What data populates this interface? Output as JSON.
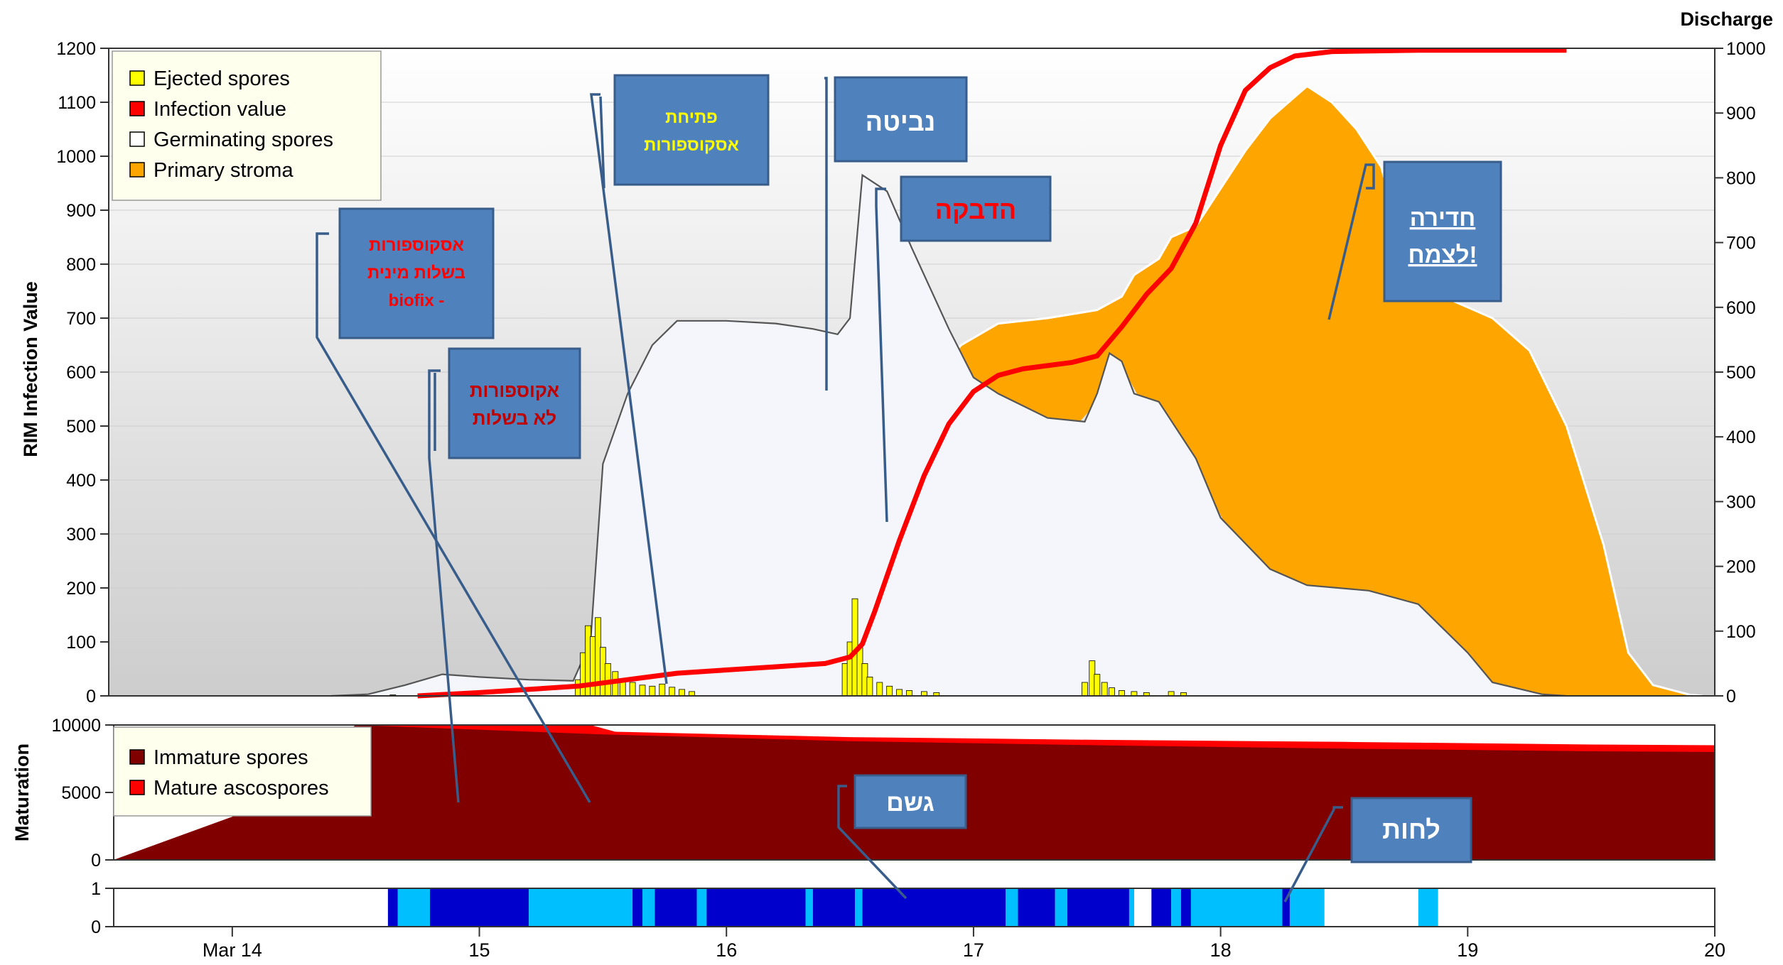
{
  "colors": {
    "ejected": "#ffff00",
    "infection": "#ff0000",
    "germinating": "#f4f6fb",
    "stroma": "#ffa500",
    "immature": "#800000",
    "mature": "#ff0000",
    "rain": "#0000cc",
    "wet": "#00bfff",
    "callout": "#4f81bd",
    "callout_border": "#385d8a"
  },
  "chart_data": [
    {
      "type": "area",
      "name": "rim-infection-panel",
      "ylabel": "RIM Infection Value",
      "y2label": "Discharge",
      "ylim": [
        0,
        1200
      ],
      "y2lim": [
        0,
        1000
      ],
      "yticks": [
        "0",
        "100",
        "200",
        "300",
        "400",
        "500",
        "600",
        "700",
        "800",
        "900",
        "1000",
        "1100",
        "1200"
      ],
      "y2ticks": [
        "0",
        "100",
        "200",
        "300",
        "400",
        "500",
        "600",
        "700",
        "800",
        "900",
        "1000"
      ],
      "legend": {
        "position": "top-left",
        "entries": [
          "Ejected spores",
          "Infection value",
          "Germinating spores",
          "Primary stroma"
        ]
      },
      "germinating": [
        [
          14.4,
          0
        ],
        [
          14.55,
          3
        ],
        [
          14.7,
          20
        ],
        [
          14.85,
          40
        ],
        [
          15.0,
          35
        ],
        [
          15.2,
          30
        ],
        [
          15.38,
          28
        ],
        [
          15.45,
          100
        ],
        [
          15.5,
          430
        ],
        [
          15.6,
          560
        ],
        [
          15.7,
          650
        ],
        [
          15.8,
          695
        ],
        [
          16.0,
          695
        ],
        [
          16.2,
          690
        ],
        [
          16.35,
          680
        ],
        [
          16.45,
          670
        ],
        [
          16.5,
          700
        ],
        [
          16.55,
          965
        ],
        [
          16.65,
          935
        ],
        [
          16.75,
          830
        ],
        [
          16.9,
          680
        ],
        [
          17.0,
          590
        ],
        [
          17.1,
          560
        ],
        [
          17.3,
          515
        ],
        [
          17.45,
          508
        ],
        [
          17.5,
          560
        ],
        [
          17.55,
          635
        ],
        [
          17.6,
          620
        ],
        [
          17.65,
          560
        ],
        [
          17.75,
          545
        ],
        [
          17.9,
          440
        ],
        [
          18.0,
          330
        ],
        [
          18.2,
          235
        ],
        [
          18.35,
          205
        ],
        [
          18.6,
          195
        ],
        [
          18.8,
          170
        ],
        [
          19.0,
          80
        ],
        [
          19.1,
          25
        ],
        [
          19.3,
          3
        ],
        [
          19.4,
          0
        ]
      ],
      "stroma_top": [
        [
          16.85,
          600
        ],
        [
          16.95,
          650
        ],
        [
          17.1,
          690
        ],
        [
          17.3,
          700
        ],
        [
          17.5,
          715
        ],
        [
          17.6,
          740
        ],
        [
          17.65,
          780
        ],
        [
          17.75,
          810
        ],
        [
          17.8,
          850
        ],
        [
          17.9,
          870
        ],
        [
          18.0,
          940
        ],
        [
          18.1,
          1010
        ],
        [
          18.2,
          1070
        ],
        [
          18.3,
          1110
        ],
        [
          18.35,
          1130
        ],
        [
          18.45,
          1100
        ],
        [
          18.55,
          1050
        ],
        [
          18.65,
          980
        ],
        [
          18.7,
          900
        ],
        [
          18.8,
          780
        ],
        [
          18.9,
          740
        ],
        [
          19.0,
          720
        ],
        [
          19.1,
          700
        ],
        [
          19.25,
          640
        ],
        [
          19.4,
          500
        ],
        [
          19.55,
          280
        ],
        [
          19.65,
          80
        ],
        [
          19.75,
          20
        ],
        [
          19.9,
          2
        ],
        [
          19.95,
          0
        ]
      ],
      "infection_value": [
        [
          14.75,
          0
        ],
        [
          15.0,
          5
        ],
        [
          15.4,
          15
        ],
        [
          15.6,
          25
        ],
        [
          15.8,
          35
        ],
        [
          16.0,
          40
        ],
        [
          16.2,
          45
        ],
        [
          16.4,
          50
        ],
        [
          16.5,
          60
        ],
        [
          16.55,
          80
        ],
        [
          16.6,
          130
        ],
        [
          16.7,
          240
        ],
        [
          16.8,
          340
        ],
        [
          16.9,
          420
        ],
        [
          17.0,
          470
        ],
        [
          17.1,
          495
        ],
        [
          17.2,
          505
        ],
        [
          17.4,
          515
        ],
        [
          17.5,
          525
        ],
        [
          17.6,
          570
        ],
        [
          17.7,
          620
        ],
        [
          17.8,
          660
        ],
        [
          17.9,
          730
        ],
        [
          18.0,
          850
        ],
        [
          18.1,
          935
        ],
        [
          18.2,
          970
        ],
        [
          18.3,
          988
        ],
        [
          18.45,
          995
        ],
        [
          18.8,
          997
        ],
        [
          19.4,
          997
        ]
      ],
      "ejected_spores": [
        [
          14.65,
          2
        ],
        [
          14.9,
          4
        ],
        [
          15.4,
          30
        ],
        [
          15.42,
          80
        ],
        [
          15.44,
          130
        ],
        [
          15.46,
          110
        ],
        [
          15.48,
          145
        ],
        [
          15.5,
          90
        ],
        [
          15.52,
          60
        ],
        [
          15.55,
          45
        ],
        [
          15.58,
          30
        ],
        [
          15.62,
          25
        ],
        [
          15.66,
          20
        ],
        [
          15.7,
          18
        ],
        [
          15.74,
          22
        ],
        [
          15.78,
          16
        ],
        [
          15.82,
          12
        ],
        [
          15.86,
          8
        ],
        [
          16.48,
          60
        ],
        [
          16.5,
          100
        ],
        [
          16.52,
          180
        ],
        [
          16.54,
          90
        ],
        [
          16.56,
          60
        ],
        [
          16.58,
          35
        ],
        [
          16.62,
          25
        ],
        [
          16.66,
          18
        ],
        [
          16.7,
          12
        ],
        [
          16.74,
          10
        ],
        [
          16.8,
          8
        ],
        [
          16.85,
          6
        ],
        [
          17.45,
          25
        ],
        [
          17.48,
          65
        ],
        [
          17.5,
          40
        ],
        [
          17.53,
          25
        ],
        [
          17.56,
          15
        ],
        [
          17.6,
          10
        ],
        [
          17.65,
          8
        ],
        [
          17.7,
          6
        ],
        [
          17.8,
          8
        ],
        [
          17.85,
          6
        ]
      ]
    },
    {
      "type": "area",
      "name": "maturation-panel",
      "ylabel": "Maturation",
      "ylim": [
        0,
        10000
      ],
      "yticks": [
        "0",
        "5000",
        "10000"
      ],
      "legend": {
        "position": "top-left",
        "entries": [
          "Immature spores",
          "Mature ascospores"
        ]
      },
      "immature": [
        [
          14.0,
          3200
        ],
        [
          14.5,
          10000
        ],
        [
          15.5,
          9300
        ],
        [
          16.5,
          8800
        ],
        [
          17.5,
          8500
        ],
        [
          18.5,
          8250
        ],
        [
          19.5,
          8050
        ],
        [
          20.0,
          8000
        ]
      ],
      "total": [
        [
          14.0,
          3200
        ],
        [
          14.5,
          10000
        ],
        [
          15.45,
          10000
        ],
        [
          15.55,
          9500
        ],
        [
          16.5,
          9100
        ],
        [
          17.5,
          8900
        ],
        [
          18.5,
          8750
        ],
        [
          19.5,
          8550
        ],
        [
          20.0,
          8500
        ]
      ]
    },
    {
      "type": "heatmap",
      "name": "wetness-panel",
      "ylim": [
        0,
        1
      ],
      "yticks": [
        "0",
        "1"
      ],
      "segments": [
        [
          14.63,
          14.67,
          "rain"
        ],
        [
          14.67,
          14.8,
          "wet"
        ],
        [
          14.8,
          15.2,
          "rain"
        ],
        [
          15.2,
          15.62,
          "wet"
        ],
        [
          15.62,
          15.66,
          "rain"
        ],
        [
          15.66,
          15.71,
          "wet"
        ],
        [
          15.71,
          15.88,
          "rain"
        ],
        [
          15.88,
          15.92,
          "wet"
        ],
        [
          15.92,
          16.32,
          "rain"
        ],
        [
          16.32,
          16.35,
          "wet"
        ],
        [
          16.35,
          16.52,
          "rain"
        ],
        [
          16.52,
          16.55,
          "wet"
        ],
        [
          16.55,
          17.13,
          "rain"
        ],
        [
          17.13,
          17.18,
          "wet"
        ],
        [
          17.18,
          17.33,
          "rain"
        ],
        [
          17.33,
          17.38,
          "wet"
        ],
        [
          17.38,
          17.63,
          "rain"
        ],
        [
          17.63,
          17.65,
          "wet"
        ],
        [
          17.72,
          17.8,
          "rain"
        ],
        [
          17.8,
          17.84,
          "wet"
        ],
        [
          17.84,
          17.88,
          "rain"
        ],
        [
          17.88,
          18.25,
          "wet"
        ],
        [
          18.25,
          18.28,
          "rain"
        ],
        [
          18.28,
          18.42,
          "wet"
        ],
        [
          18.8,
          18.88,
          "wet"
        ]
      ]
    }
  ],
  "xaxis": {
    "range": [
      13.5,
      20.0
    ],
    "ticks": [
      {
        "value": 14,
        "label": "Mar 14"
      },
      {
        "value": 15,
        "label": "15"
      },
      {
        "value": 16,
        "label": "16"
      },
      {
        "value": 17,
        "label": "17"
      },
      {
        "value": 18,
        "label": "18"
      },
      {
        "value": 19,
        "label": "19"
      },
      {
        "value": 20,
        "label": "20"
      }
    ]
  },
  "callouts": [
    {
      "name": "callout-ascospores-mature",
      "lines": [
        "אסקוספורות",
        "בשלות מינית",
        "biofix -"
      ],
      "color": "#ff0000",
      "underline": false
    },
    {
      "name": "callout-ascospores-immature",
      "lines": [
        "אקוספורות",
        "לא בשלות"
      ],
      "color": "#c00000",
      "underline": false
    },
    {
      "name": "callout-opening",
      "lines": [
        "פתיחת",
        "אסקוספורות"
      ],
      "color": "#ffff00",
      "underline": false
    },
    {
      "name": "callout-germination",
      "lines": [
        "נביטה"
      ],
      "color": "#ffffff",
      "underline": false
    },
    {
      "name": "callout-infection",
      "lines": [
        "הדבקה"
      ],
      "color": "#ff0000",
      "underline": false
    },
    {
      "name": "callout-penetration",
      "lines": [
        "חדירה",
        "לצמח!"
      ],
      "color": "#ffffff",
      "underline": true
    },
    {
      "name": "callout-rain",
      "lines": [
        "גשם"
      ],
      "color": "#ffffff",
      "underline": false
    },
    {
      "name": "callout-wetness",
      "lines": [
        "לחות"
      ],
      "color": "#ffffff",
      "underline": false
    }
  ]
}
